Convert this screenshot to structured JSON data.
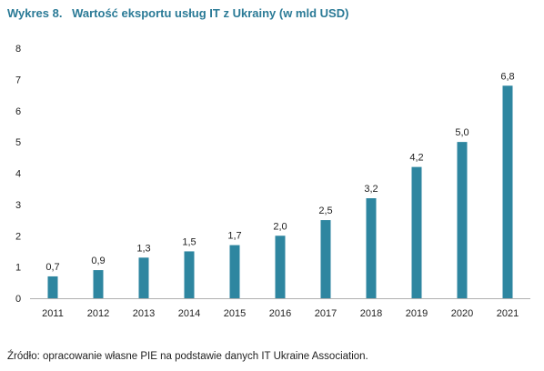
{
  "header": {
    "prefix": "Wykres 8.",
    "title": "Wartość eksportu usług IT z Ukrainy (w mld USD)"
  },
  "footer": {
    "source": "Źródło: opracowanie własne PIE na podstawie danych IT Ukraine Association."
  },
  "colors": {
    "bar": "#2e86a0",
    "title": "#2a7a96",
    "axis": "#b0b0b0",
    "text": "#222222"
  },
  "chart_data": {
    "type": "bar",
    "title": "Wartość eksportu usług IT z Ukrainy (w mld USD)",
    "xlabel": "",
    "ylabel": "",
    "categories": [
      "2011",
      "2012",
      "2013",
      "2014",
      "2015",
      "2016",
      "2017",
      "2018",
      "2019",
      "2020",
      "2021"
    ],
    "values": [
      0.7,
      0.9,
      1.3,
      1.5,
      1.7,
      2.0,
      2.5,
      3.2,
      4.2,
      5.0,
      6.8
    ],
    "value_labels": [
      "0,7",
      "0,9",
      "1,3",
      "1,5",
      "1,7",
      "2,0",
      "2,5",
      "3,2",
      "4,2",
      "5,0",
      "6,8"
    ],
    "ylim": [
      0,
      8
    ],
    "yticks": [
      "0",
      "1",
      "2",
      "3",
      "4",
      "5",
      "6",
      "7",
      "8"
    ],
    "grid": false,
    "legend": "none"
  }
}
